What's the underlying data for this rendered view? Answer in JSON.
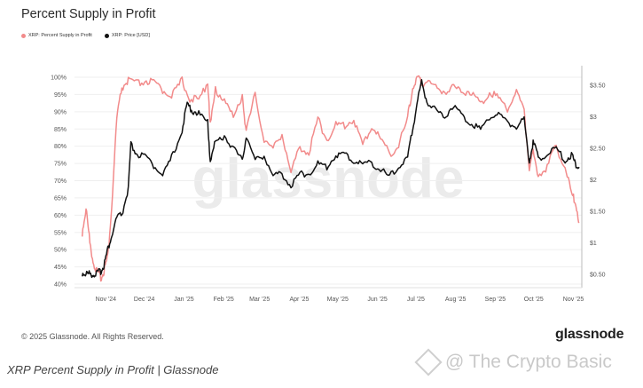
{
  "header": {
    "title": "Percent Supply in Profit"
  },
  "legend": [
    {
      "label": "XRP: Percent Supply in Profit",
      "color": "#f28b8b"
    },
    {
      "label": "XRP: Price [USD]",
      "color": "#111111"
    }
  ],
  "footer": {
    "copyright": "© 2025 Glassnode. All Rights Reserved.",
    "brand": "glassnode",
    "caption": "XRP Percent Supply in Profit | Glassnode",
    "source_watermark": "@ The Crypto Basic"
  },
  "watermark": "glassnode",
  "chart_data": {
    "type": "line",
    "x_ticks": [
      "Nov '24",
      "Dec '24",
      "Jan '25",
      "Feb '25",
      "Mar '25",
      "Apr '25",
      "May '25",
      "Jun '25",
      "Jul '25",
      "Aug '25",
      "Sep '25",
      "Oct '25",
      "Nov '25"
    ],
    "y_left": {
      "ticks": [
        "40%",
        "45%",
        "50%",
        "55%",
        "60%",
        "65%",
        "70%",
        "75%",
        "80%",
        "85%",
        "90%",
        "95%",
        "100%"
      ],
      "range": [
        40,
        100
      ]
    },
    "y_right": {
      "ticks": [
        "$0.50",
        "$1",
        "$1.50",
        "$2",
        "$2.50",
        "$3",
        "$3.50"
      ],
      "range": [
        0.5,
        3.5
      ],
      "scale": "linear"
    },
    "grid": true,
    "legend_position": "top-left",
    "series": [
      {
        "name": "XRP: Percent Supply in Profit",
        "axis": "left",
        "color": "#f28b8b",
        "x": [
          "2024-10-26",
          "2024-10-29",
          "2024-11-01",
          "2024-11-04",
          "2024-11-07",
          "2024-11-10",
          "2024-11-12",
          "2024-11-15",
          "2024-11-18",
          "2024-11-22",
          "2024-11-26",
          "2024-12-01",
          "2024-12-08",
          "2024-12-15",
          "2024-12-22",
          "2024-12-29",
          "2025-01-05",
          "2025-01-12",
          "2025-01-18",
          "2025-01-25",
          "2025-02-01",
          "2025-02-03",
          "2025-02-07",
          "2025-02-14",
          "2025-02-21",
          "2025-02-28",
          "2025-03-03",
          "2025-03-10",
          "2025-03-17",
          "2025-03-24",
          "2025-03-31",
          "2025-04-07",
          "2025-04-14",
          "2025-04-21",
          "2025-04-28",
          "2025-05-05",
          "2025-05-12",
          "2025-05-19",
          "2025-05-26",
          "2025-06-02",
          "2025-06-09",
          "2025-06-16",
          "2025-06-23",
          "2025-06-30",
          "2025-07-07",
          "2025-07-11",
          "2025-07-15",
          "2025-07-18",
          "2025-07-22",
          "2025-07-29",
          "2025-08-05",
          "2025-08-12",
          "2025-08-19",
          "2025-08-26",
          "2025-09-02",
          "2025-09-09",
          "2025-09-16",
          "2025-09-23",
          "2025-09-30",
          "2025-10-06",
          "2025-10-10",
          "2025-10-13",
          "2025-10-17",
          "2025-10-24",
          "2025-10-31",
          "2025-11-07",
          "2025-11-12",
          "2025-11-15",
          "2025-11-18"
        ],
        "y": [
          55,
          62,
          52,
          46,
          43,
          42,
          44,
          48,
          62,
          88,
          97,
          99,
          98,
          99,
          98,
          96,
          95,
          99,
          94,
          93,
          99,
          86,
          96,
          94,
          88,
          95,
          84,
          95,
          82,
          79,
          84,
          72,
          80,
          78,
          88,
          82,
          86,
          86,
          88,
          80,
          86,
          82,
          78,
          80,
          88,
          97,
          100,
          98,
          99,
          97,
          96,
          97,
          96,
          96,
          92,
          96,
          94,
          91,
          96,
          90,
          74,
          78,
          72,
          74,
          80,
          74,
          66,
          64,
          58
        ]
      },
      {
        "name": "XRP: Price [USD]",
        "axis": "right",
        "color": "#111111",
        "x": [
          "2024-10-26",
          "2024-10-29",
          "2024-11-01",
          "2024-11-04",
          "2024-11-07",
          "2024-11-10",
          "2024-11-12",
          "2024-11-15",
          "2024-11-18",
          "2024-11-22",
          "2024-11-26",
          "2024-12-01",
          "2024-12-03",
          "2024-12-08",
          "2024-12-15",
          "2024-12-22",
          "2024-12-29",
          "2025-01-05",
          "2025-01-12",
          "2025-01-16",
          "2025-01-20",
          "2025-01-25",
          "2025-02-01",
          "2025-02-03",
          "2025-02-07",
          "2025-02-14",
          "2025-02-21",
          "2025-02-28",
          "2025-03-03",
          "2025-03-10",
          "2025-03-17",
          "2025-03-24",
          "2025-03-31",
          "2025-04-07",
          "2025-04-14",
          "2025-04-21",
          "2025-04-28",
          "2025-05-05",
          "2025-05-12",
          "2025-05-19",
          "2025-05-26",
          "2025-06-02",
          "2025-06-09",
          "2025-06-16",
          "2025-06-23",
          "2025-06-30",
          "2025-07-07",
          "2025-07-11",
          "2025-07-15",
          "2025-07-18",
          "2025-07-22",
          "2025-07-29",
          "2025-08-05",
          "2025-08-12",
          "2025-08-19",
          "2025-08-26",
          "2025-09-02",
          "2025-09-09",
          "2025-09-16",
          "2025-09-23",
          "2025-09-30",
          "2025-10-06",
          "2025-10-10",
          "2025-10-13",
          "2025-10-17",
          "2025-10-24",
          "2025-10-31",
          "2025-11-07",
          "2025-11-12",
          "2025-11-15",
          "2025-11-18"
        ],
        "y": [
          0.52,
          0.51,
          0.51,
          0.5,
          0.52,
          0.56,
          0.65,
          0.9,
          1.1,
          1.4,
          1.45,
          1.85,
          2.55,
          2.4,
          2.35,
          2.2,
          2.1,
          2.4,
          2.8,
          3.2,
          3.1,
          3.05,
          2.9,
          2.3,
          2.6,
          2.7,
          2.5,
          2.3,
          2.7,
          2.3,
          2.4,
          2.05,
          2.1,
          1.9,
          2.1,
          2.1,
          2.25,
          2.2,
          2.4,
          2.4,
          2.3,
          2.25,
          2.28,
          2.15,
          2.05,
          2.2,
          2.35,
          2.8,
          3.3,
          3.55,
          3.25,
          3.1,
          3.0,
          3.2,
          3.0,
          2.9,
          2.8,
          3.0,
          3.05,
          2.9,
          2.85,
          2.95,
          2.3,
          2.6,
          2.35,
          2.4,
          2.5,
          2.3,
          2.4,
          2.25,
          2.2
        ]
      }
    ]
  }
}
